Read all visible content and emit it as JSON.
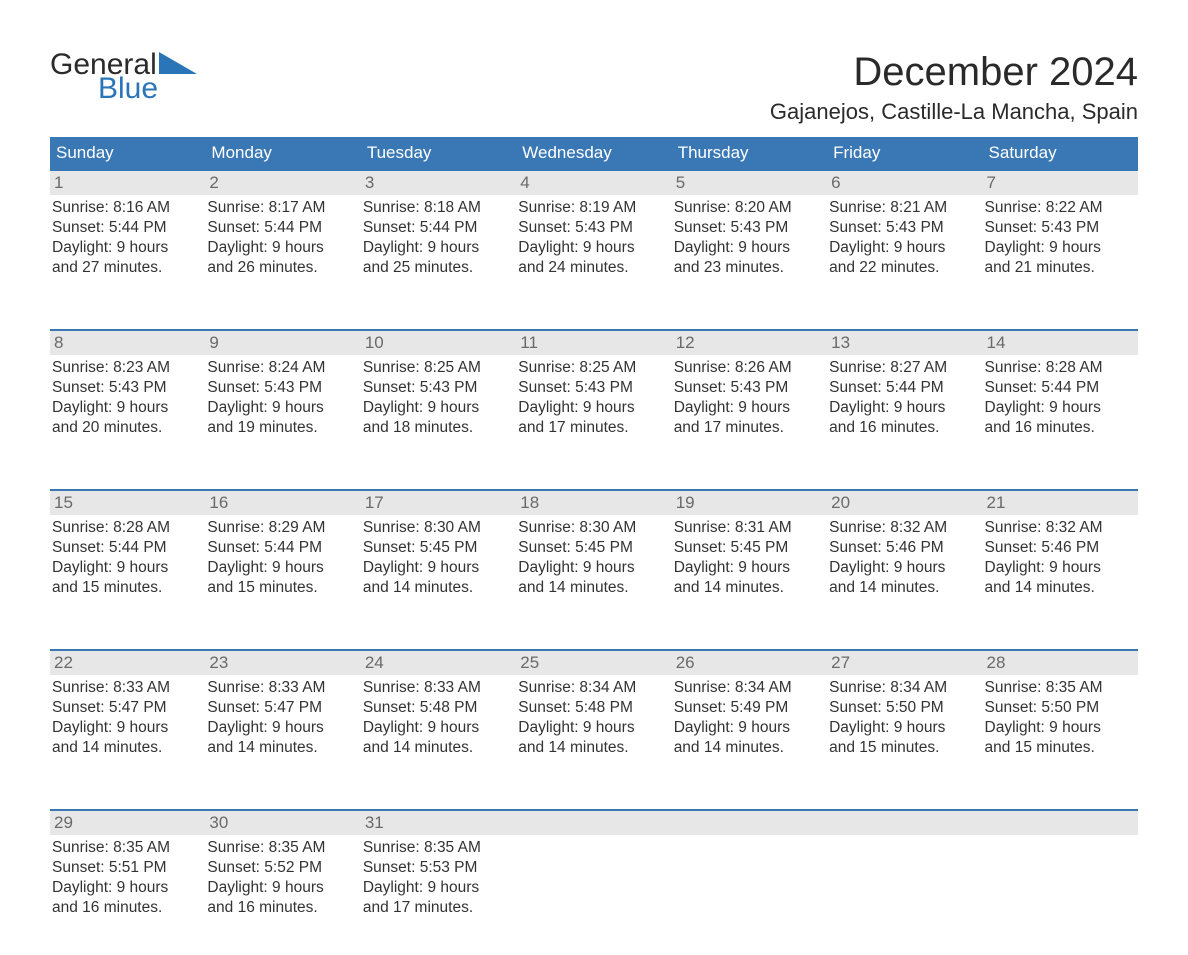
{
  "brand": {
    "line1": "General",
    "line2": "Blue",
    "logo_color": "#2a74b8"
  },
  "title": "December 2024",
  "location": "Gajanejos, Castille-La Mancha, Spain",
  "colors": {
    "header_bg": "#3a78b5",
    "header_text": "#ffffff",
    "daynum_bg": "#e7e7e7",
    "daynum_text": "#6a6a6a",
    "body_text": "#333333",
    "week_border": "#3a78b5"
  },
  "days_of_week": [
    "Sunday",
    "Monday",
    "Tuesday",
    "Wednesday",
    "Thursday",
    "Friday",
    "Saturday"
  ],
  "labels": {
    "sunrise": "Sunrise:",
    "sunset": "Sunset:",
    "daylight": "Daylight:"
  },
  "weeks": [
    [
      {
        "n": "1",
        "sunrise": "8:16 AM",
        "sunset": "5:44 PM",
        "daylight1": "9 hours",
        "daylight2": "and 27 minutes."
      },
      {
        "n": "2",
        "sunrise": "8:17 AM",
        "sunset": "5:44 PM",
        "daylight1": "9 hours",
        "daylight2": "and 26 minutes."
      },
      {
        "n": "3",
        "sunrise": "8:18 AM",
        "sunset": "5:44 PM",
        "daylight1": "9 hours",
        "daylight2": "and 25 minutes."
      },
      {
        "n": "4",
        "sunrise": "8:19 AM",
        "sunset": "5:43 PM",
        "daylight1": "9 hours",
        "daylight2": "and 24 minutes."
      },
      {
        "n": "5",
        "sunrise": "8:20 AM",
        "sunset": "5:43 PM",
        "daylight1": "9 hours",
        "daylight2": "and 23 minutes."
      },
      {
        "n": "6",
        "sunrise": "8:21 AM",
        "sunset": "5:43 PM",
        "daylight1": "9 hours",
        "daylight2": "and 22 minutes."
      },
      {
        "n": "7",
        "sunrise": "8:22 AM",
        "sunset": "5:43 PM",
        "daylight1": "9 hours",
        "daylight2": "and 21 minutes."
      }
    ],
    [
      {
        "n": "8",
        "sunrise": "8:23 AM",
        "sunset": "5:43 PM",
        "daylight1": "9 hours",
        "daylight2": "and 20 minutes."
      },
      {
        "n": "9",
        "sunrise": "8:24 AM",
        "sunset": "5:43 PM",
        "daylight1": "9 hours",
        "daylight2": "and 19 minutes."
      },
      {
        "n": "10",
        "sunrise": "8:25 AM",
        "sunset": "5:43 PM",
        "daylight1": "9 hours",
        "daylight2": "and 18 minutes."
      },
      {
        "n": "11",
        "sunrise": "8:25 AM",
        "sunset": "5:43 PM",
        "daylight1": "9 hours",
        "daylight2": "and 17 minutes."
      },
      {
        "n": "12",
        "sunrise": "8:26 AM",
        "sunset": "5:43 PM",
        "daylight1": "9 hours",
        "daylight2": "and 17 minutes."
      },
      {
        "n": "13",
        "sunrise": "8:27 AM",
        "sunset": "5:44 PM",
        "daylight1": "9 hours",
        "daylight2": "and 16 minutes."
      },
      {
        "n": "14",
        "sunrise": "8:28 AM",
        "sunset": "5:44 PM",
        "daylight1": "9 hours",
        "daylight2": "and 16 minutes."
      }
    ],
    [
      {
        "n": "15",
        "sunrise": "8:28 AM",
        "sunset": "5:44 PM",
        "daylight1": "9 hours",
        "daylight2": "and 15 minutes."
      },
      {
        "n": "16",
        "sunrise": "8:29 AM",
        "sunset": "5:44 PM",
        "daylight1": "9 hours",
        "daylight2": "and 15 minutes."
      },
      {
        "n": "17",
        "sunrise": "8:30 AM",
        "sunset": "5:45 PM",
        "daylight1": "9 hours",
        "daylight2": "and 14 minutes."
      },
      {
        "n": "18",
        "sunrise": "8:30 AM",
        "sunset": "5:45 PM",
        "daylight1": "9 hours",
        "daylight2": "and 14 minutes."
      },
      {
        "n": "19",
        "sunrise": "8:31 AM",
        "sunset": "5:45 PM",
        "daylight1": "9 hours",
        "daylight2": "and 14 minutes."
      },
      {
        "n": "20",
        "sunrise": "8:32 AM",
        "sunset": "5:46 PM",
        "daylight1": "9 hours",
        "daylight2": "and 14 minutes."
      },
      {
        "n": "21",
        "sunrise": "8:32 AM",
        "sunset": "5:46 PM",
        "daylight1": "9 hours",
        "daylight2": "and 14 minutes."
      }
    ],
    [
      {
        "n": "22",
        "sunrise": "8:33 AM",
        "sunset": "5:47 PM",
        "daylight1": "9 hours",
        "daylight2": "and 14 minutes."
      },
      {
        "n": "23",
        "sunrise": "8:33 AM",
        "sunset": "5:47 PM",
        "daylight1": "9 hours",
        "daylight2": "and 14 minutes."
      },
      {
        "n": "24",
        "sunrise": "8:33 AM",
        "sunset": "5:48 PM",
        "daylight1": "9 hours",
        "daylight2": "and 14 minutes."
      },
      {
        "n": "25",
        "sunrise": "8:34 AM",
        "sunset": "5:48 PM",
        "daylight1": "9 hours",
        "daylight2": "and 14 minutes."
      },
      {
        "n": "26",
        "sunrise": "8:34 AM",
        "sunset": "5:49 PM",
        "daylight1": "9 hours",
        "daylight2": "and 14 minutes."
      },
      {
        "n": "27",
        "sunrise": "8:34 AM",
        "sunset": "5:50 PM",
        "daylight1": "9 hours",
        "daylight2": "and 15 minutes."
      },
      {
        "n": "28",
        "sunrise": "8:35 AM",
        "sunset": "5:50 PM",
        "daylight1": "9 hours",
        "daylight2": "and 15 minutes."
      }
    ],
    [
      {
        "n": "29",
        "sunrise": "8:35 AM",
        "sunset": "5:51 PM",
        "daylight1": "9 hours",
        "daylight2": "and 16 minutes."
      },
      {
        "n": "30",
        "sunrise": "8:35 AM",
        "sunset": "5:52 PM",
        "daylight1": "9 hours",
        "daylight2": "and 16 minutes."
      },
      {
        "n": "31",
        "sunrise": "8:35 AM",
        "sunset": "5:53 PM",
        "daylight1": "9 hours",
        "daylight2": "and 17 minutes."
      },
      {
        "empty": true
      },
      {
        "empty": true
      },
      {
        "empty": true
      },
      {
        "empty": true
      }
    ]
  ]
}
